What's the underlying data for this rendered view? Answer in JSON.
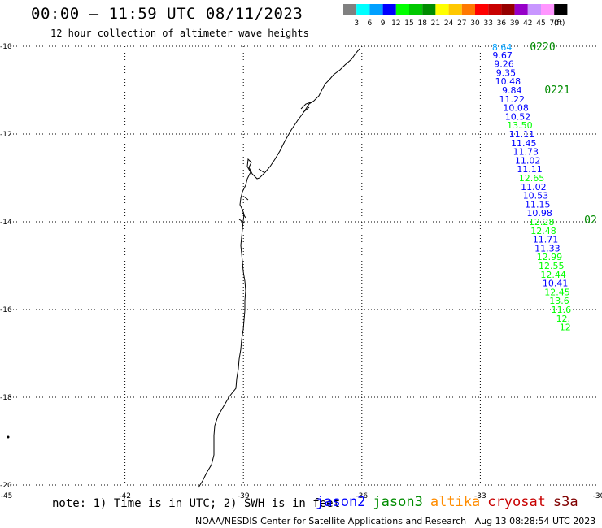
{
  "header": {
    "title": "00:00 – 11:59 UTC 08/11/2023",
    "subtitle": "12 hour collection of altimeter wave heights"
  },
  "color_scale": {
    "unit_label": "(ft)",
    "bins": [
      {
        "label": "3",
        "color": "#808080"
      },
      {
        "label": "6",
        "color": "#00ffff"
      },
      {
        "label": "9",
        "color": "#00a0ff"
      },
      {
        "label": "12",
        "color": "#0000ff"
      },
      {
        "label": "15",
        "color": "#00ff00"
      },
      {
        "label": "18",
        "color": "#00c800"
      },
      {
        "label": "21",
        "color": "#008c00"
      },
      {
        "label": "24",
        "color": "#ffff00"
      },
      {
        "label": "27",
        "color": "#ffc800"
      },
      {
        "label": "30",
        "color": "#ff7800"
      },
      {
        "label": "33",
        "color": "#ff0000"
      },
      {
        "label": "36",
        "color": "#c80000"
      },
      {
        "label": "39",
        "color": "#960000"
      },
      {
        "label": "42",
        "color": "#9600c8"
      },
      {
        "label": "45",
        "color": "#c896ff"
      },
      {
        "label": "70",
        "color": "#ff96ff"
      },
      {
        "label": "",
        "color": "#000000"
      }
    ]
  },
  "map": {
    "lon_range": [
      -45,
      -30
    ],
    "lat_range": [
      -20,
      -10
    ],
    "lon_ticks": [
      "-45",
      "-42",
      "-39",
      "-36",
      "-33",
      "-30"
    ],
    "lat_ticks": [
      "-10",
      "-12",
      "-14",
      "-16",
      "-18",
      "-20"
    ],
    "grid": "dotted"
  },
  "tracks": {
    "time_labels": [
      "0220",
      "0221",
      "02"
    ],
    "points": [
      {
        "value": "8.64",
        "lat": -10.02,
        "lon": -32.45,
        "color": "#00a0ff"
      },
      {
        "value": "9.67",
        "lat": -10.2,
        "lon": -32.44,
        "color": "#0000ff"
      },
      {
        "value": "9.26",
        "lat": -10.4,
        "lon": -32.4,
        "color": "#0000ff"
      },
      {
        "value": "9.35",
        "lat": -10.6,
        "lon": -32.35,
        "color": "#0000ff"
      },
      {
        "value": "10.48",
        "lat": -10.8,
        "lon": -32.3,
        "color": "#0000ff"
      },
      {
        "value": "9.84",
        "lat": -11.0,
        "lon": -32.2,
        "color": "#0000ff"
      },
      {
        "value": "11.22",
        "lat": -11.2,
        "lon": -32.2,
        "color": "#0000ff"
      },
      {
        "value": "10.08",
        "lat": -11.4,
        "lon": -32.1,
        "color": "#0000ff"
      },
      {
        "value": "10.52",
        "lat": -11.6,
        "lon": -32.05,
        "color": "#0000ff"
      },
      {
        "value": "13.50",
        "lat": -11.8,
        "lon": -32.0,
        "color": "#00ff00"
      },
      {
        "value": "11.11",
        "lat": -12.0,
        "lon": -31.95,
        "color": "#0000ff"
      },
      {
        "value": "11.45",
        "lat": -12.2,
        "lon": -31.9,
        "color": "#0000ff"
      },
      {
        "value": "11.73",
        "lat": -12.4,
        "lon": -31.85,
        "color": "#0000ff"
      },
      {
        "value": "11.02",
        "lat": -12.6,
        "lon": -31.8,
        "color": "#0000ff"
      },
      {
        "value": "11.11",
        "lat": -12.8,
        "lon": -31.75,
        "color": "#0000ff"
      },
      {
        "value": "12.65",
        "lat": -13.0,
        "lon": -31.7,
        "color": "#00ff00"
      },
      {
        "value": "11.02",
        "lat": -13.2,
        "lon": -31.65,
        "color": "#0000ff"
      },
      {
        "value": "10.53",
        "lat": -13.4,
        "lon": -31.6,
        "color": "#0000ff"
      },
      {
        "value": "11.15",
        "lat": -13.6,
        "lon": -31.55,
        "color": "#0000ff"
      },
      {
        "value": "10.98",
        "lat": -13.8,
        "lon": -31.5,
        "color": "#0000ff"
      },
      {
        "value": "12.28",
        "lat": -14.0,
        "lon": -31.45,
        "color": "#00ff00"
      },
      {
        "value": "12.48",
        "lat": -14.2,
        "lon": -31.4,
        "color": "#00ff00"
      },
      {
        "value": "11.71",
        "lat": -14.4,
        "lon": -31.35,
        "color": "#0000ff"
      },
      {
        "value": "11.33",
        "lat": -14.6,
        "lon": -31.3,
        "color": "#0000ff"
      },
      {
        "value": "12.99",
        "lat": -14.8,
        "lon": -31.25,
        "color": "#00ff00"
      },
      {
        "value": "12.55",
        "lat": -15.0,
        "lon": -31.2,
        "color": "#00ff00"
      },
      {
        "value": "12.44",
        "lat": -15.2,
        "lon": -31.15,
        "color": "#00ff00"
      },
      {
        "value": "10.41",
        "lat": -15.4,
        "lon": -31.1,
        "color": "#0000ff"
      },
      {
        "value": "12.45",
        "lat": -15.6,
        "lon": -31.05,
        "color": "#00ff00"
      },
      {
        "value": "13.6",
        "lat": -15.8,
        "lon": -31.0,
        "color": "#00ff00"
      },
      {
        "value": "11.6",
        "lat": -16.0,
        "lon": -30.95,
        "color": "#00ff00"
      },
      {
        "value": "12.",
        "lat": -16.2,
        "lon": -30.9,
        "color": "#00ff00"
      },
      {
        "value": "12",
        "lat": -16.4,
        "lon": -30.85,
        "color": "#00ff00"
      }
    ]
  },
  "footer": {
    "note": "note: 1) Time is in UTC; 2) SWH is in feet",
    "legend": [
      {
        "label": "jason2",
        "color": "#0000ff"
      },
      {
        "label": "jason3",
        "color": "#008c00"
      },
      {
        "label": "altika",
        "color": "#ff8c00"
      },
      {
        "label": "cryosat",
        "color": "#c80000"
      },
      {
        "label": "s3a",
        "color": "#800000"
      }
    ],
    "credit": "NOAA/NESDIS Center for Satellite Applications and Research   Aug 13 08:28:54 UTC 2023"
  }
}
